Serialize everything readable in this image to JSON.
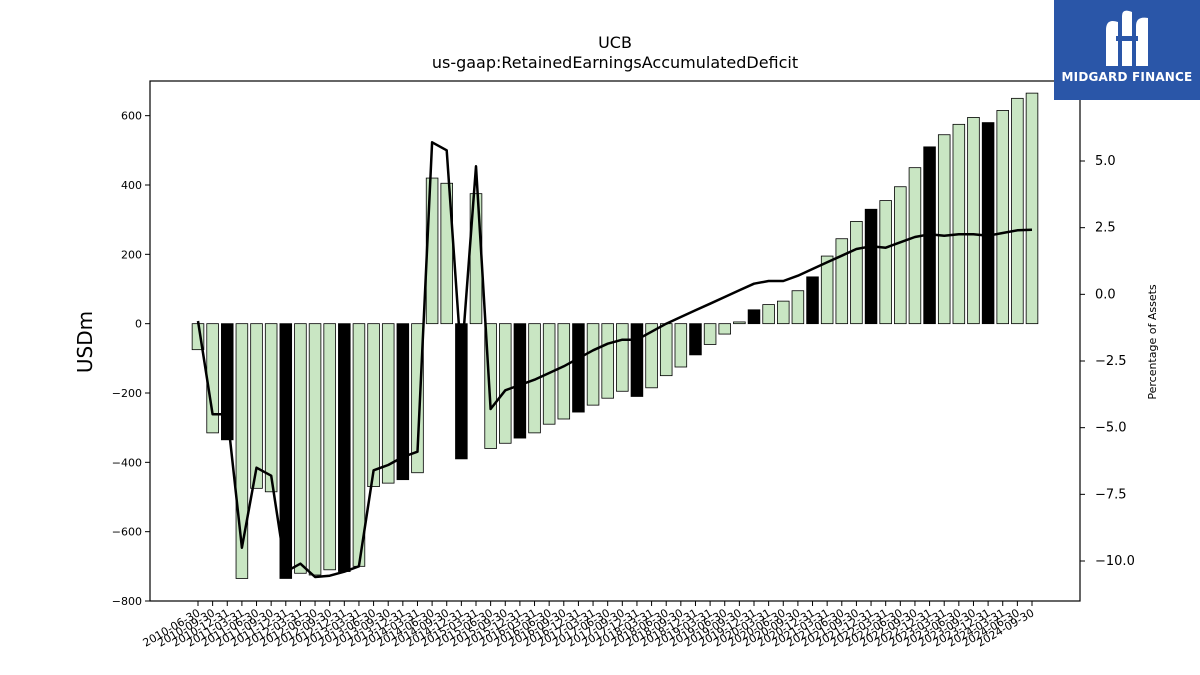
{
  "chart_data": {
    "type": "bar",
    "title": "UCB",
    "subtitle": "us-gaap:RetainedEarningsAccumulatedDeficit",
    "ylabel": "USDm",
    "y2label": "Percentage of Assets",
    "ylim": [
      -800,
      700
    ],
    "y2lim": [
      -11.5,
      8.0
    ],
    "yticks": [
      -800,
      -600,
      -400,
      -200,
      0,
      200,
      400,
      600
    ],
    "y2ticks": [
      -10.0,
      -7.5,
      -5.0,
      -2.5,
      0.0,
      2.5,
      5.0
    ],
    "colors": {
      "bar": "#c9e6c3",
      "bar_highlight": "#000000",
      "edge": "#000000",
      "line": "#000000"
    },
    "categories": [
      "2010-06-30",
      "2010-09-30",
      "2010-12-31",
      "2011-03-31",
      "2011-06-30",
      "2011-09-30",
      "2011-12-31",
      "2012-03-31",
      "2012-06-30",
      "2012-09-30",
      "2012-12-31",
      "2013-03-31",
      "2013-06-30",
      "2013-09-30",
      "2013-12-31",
      "2014-03-31",
      "2014-06-30",
      "2014-09-30",
      "2014-12-31",
      "2015-03-31",
      "2015-06-30",
      "2015-09-30",
      "2015-12-31",
      "2016-03-31",
      "2016-06-30",
      "2016-09-30",
      "2016-12-31",
      "2017-03-31",
      "2017-06-30",
      "2017-09-30",
      "2017-12-31",
      "2018-03-31",
      "2018-06-30",
      "2018-09-30",
      "2018-12-31",
      "2019-03-31",
      "2019-06-30",
      "2019-09-30",
      "2019-12-31",
      "2020-03-31",
      "2020-06-30",
      "2020-09-30",
      "2020-12-31",
      "2021-03-31",
      "2021-06-30",
      "2021-09-30",
      "2021-12-31",
      "2022-03-31",
      "2022-06-30",
      "2022-09-30",
      "2022-12-31",
      "2023-03-31",
      "2023-06-30",
      "2023-09-30",
      "2023-12-31",
      "2024-03-31",
      "2024-06-30",
      "2024-09-30"
    ],
    "series": [
      {
        "kind": "bar",
        "values": [
          -75,
          -315,
          -335,
          -735,
          -475,
          -485,
          -735,
          -720,
          -725,
          -710,
          -715,
          -700,
          -470,
          -460,
          -450,
          -430,
          420,
          405,
          -390,
          375,
          -360,
          -345,
          -330,
          -315,
          -290,
          -275,
          -255,
          -235,
          -215,
          -195,
          -210,
          -185,
          -150,
          -125,
          -90,
          -60,
          -30,
          5,
          40,
          55,
          65,
          95,
          135,
          195,
          245,
          295,
          330,
          355,
          395,
          450,
          510,
          545,
          575,
          595,
          580,
          615,
          650,
          665
        ],
        "highlight_index": [
          2,
          6,
          10,
          14,
          18,
          22,
          26,
          30,
          34,
          38,
          42,
          46,
          50,
          54
        ]
      },
      {
        "kind": "line",
        "axis": "right",
        "values": [
          -1.0,
          -4.5,
          -4.5,
          -9.5,
          -6.5,
          -6.8,
          -10.4,
          -10.1,
          -10.6,
          -10.55,
          -10.4,
          -10.2,
          -6.6,
          -6.4,
          -6.1,
          -5.9,
          5.7,
          5.4,
          -2.5,
          4.8,
          -4.3,
          -3.6,
          -3.4,
          -3.2,
          -2.95,
          -2.7,
          -2.4,
          -2.1,
          -1.85,
          -1.7,
          -1.7,
          -1.4,
          -1.1,
          -0.85,
          -0.6,
          -0.35,
          -0.1,
          0.15,
          0.4,
          0.5,
          0.5,
          0.7,
          0.95,
          1.2,
          1.45,
          1.7,
          1.8,
          1.75,
          1.95,
          2.15,
          2.25,
          2.2,
          2.25,
          2.25,
          2.2,
          2.3,
          2.4,
          2.42
        ]
      }
    ]
  },
  "logo": {
    "text": "MIDGARD FINANCE"
  }
}
